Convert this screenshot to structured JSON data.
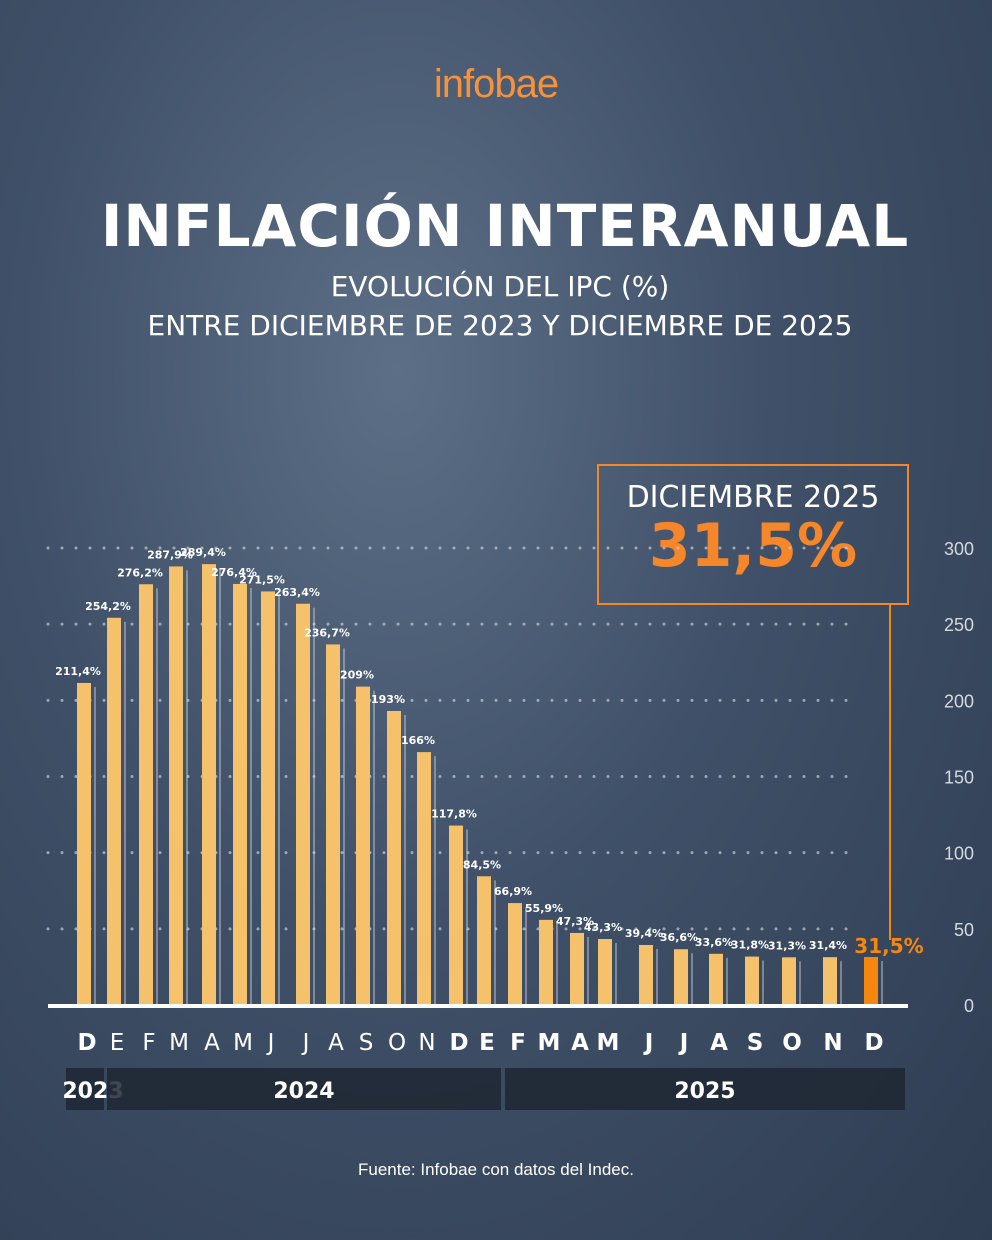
{
  "brand": "infobae",
  "title": "INFLACIÓN INTERANUAL",
  "subtitle1": "EVOLUCIÓN DEL IPC (%)",
  "subtitle2": "ENTRE DICIEMBRE DE 2023 Y DICIEMBRE DE 2025",
  "callout": {
    "label": "DICIEMBRE 2025",
    "value": "31,5%"
  },
  "source": "Fuente: Infobae con datos del Indec.",
  "colors": {
    "bar": "#f5c26b",
    "highlight": "#f5870f",
    "background": "#3f5068"
  },
  "chart_data": {
    "type": "bar",
    "categories": [
      "D",
      "E",
      "F",
      "M",
      "A",
      "M",
      "J",
      "J",
      "A",
      "S",
      "O",
      "N",
      "D",
      "E",
      "F",
      "M",
      "A",
      "M",
      "J",
      "J",
      "A",
      "S",
      "O",
      "N",
      "D"
    ],
    "years": [
      {
        "label": "2023",
        "span": 1
      },
      {
        "label": "2024",
        "span": 12
      },
      {
        "label": "2025",
        "span": 12
      }
    ],
    "values": [
      211.4,
      254.2,
      276.2,
      287.9,
      289.4,
      276.4,
      271.5,
      263.4,
      236.7,
      209,
      193,
      166,
      117.8,
      84.5,
      66.9,
      55.9,
      47.3,
      43.3,
      39.4,
      36.6,
      33.6,
      31.8,
      31.3,
      31.4,
      31.5
    ],
    "labels": [
      "211,4%",
      "254,2%",
      "276,2%",
      "287,9%",
      "289,4%",
      "276,4%",
      "271,5%",
      "263,4%",
      "236,7%",
      "209%",
      "193%",
      "166%",
      "117,8%",
      "84,5%",
      "66,9%",
      "55,9%",
      "47,3%",
      "43,3%",
      "39,4%",
      "36,6%",
      "33,6%",
      "31,8%",
      "31,3%",
      "31,4%",
      "31,5%"
    ],
    "yticks": [
      "0",
      "50",
      "100",
      "150",
      "200",
      "250",
      "300"
    ],
    "ylim": [
      0,
      300
    ],
    "grid": true,
    "highlight_index": 24
  }
}
